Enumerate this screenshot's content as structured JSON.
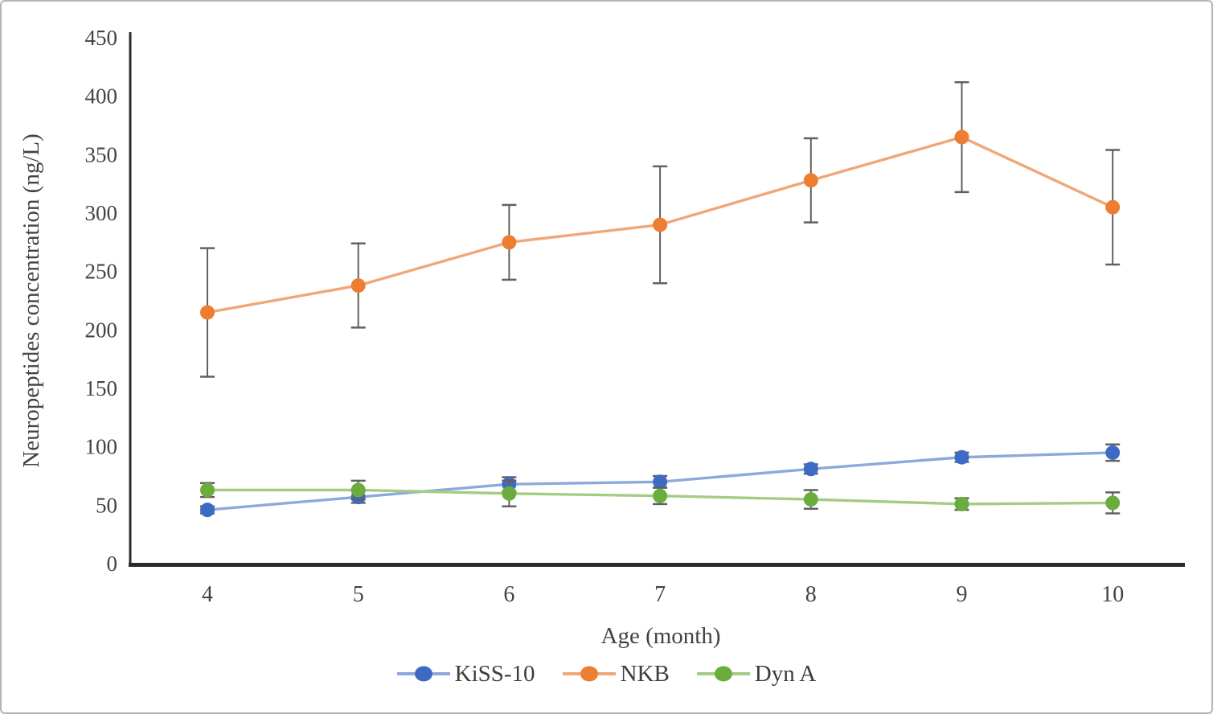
{
  "figure": {
    "background": "#ffffff",
    "border_color": "#b5b5b5"
  },
  "chart_data": {
    "type": "line",
    "title": "",
    "xlabel": "Age (month)",
    "ylabel": "Neuropeptides concentration (ng/L)",
    "categories": [
      4,
      5,
      6,
      7,
      8,
      9,
      10
    ],
    "ylim": [
      0,
      450
    ],
    "yticks": [
      0,
      50,
      100,
      150,
      200,
      250,
      300,
      350,
      400,
      450
    ],
    "grid": false,
    "legend_position": "bottom",
    "error_bars": true,
    "series": [
      {
        "name": "KiSS-10",
        "marker_color": "#3d6bc4",
        "line_color": "#8da9dc",
        "values": [
          46,
          57,
          68,
          70,
          81,
          91,
          95
        ],
        "errors": [
          3,
          5,
          6,
          5,
          4,
          4,
          7
        ]
      },
      {
        "name": "NKB",
        "marker_color": "#ed7d31",
        "line_color": "#f0a778",
        "values": [
          215,
          238,
          275,
          290,
          328,
          365,
          305
        ],
        "errors": [
          55,
          36,
          32,
          50,
          36,
          47,
          49
        ]
      },
      {
        "name": "Dyn A",
        "marker_color": "#6aad3d",
        "line_color": "#a5cc85",
        "values": [
          63,
          63,
          60,
          58,
          55,
          51,
          52
        ],
        "errors": [
          6,
          8,
          11,
          7,
          8,
          5,
          9
        ]
      }
    ],
    "error_bar_color": "#616161",
    "axis_color": "#2b2b2b",
    "text_color": "#434343"
  }
}
